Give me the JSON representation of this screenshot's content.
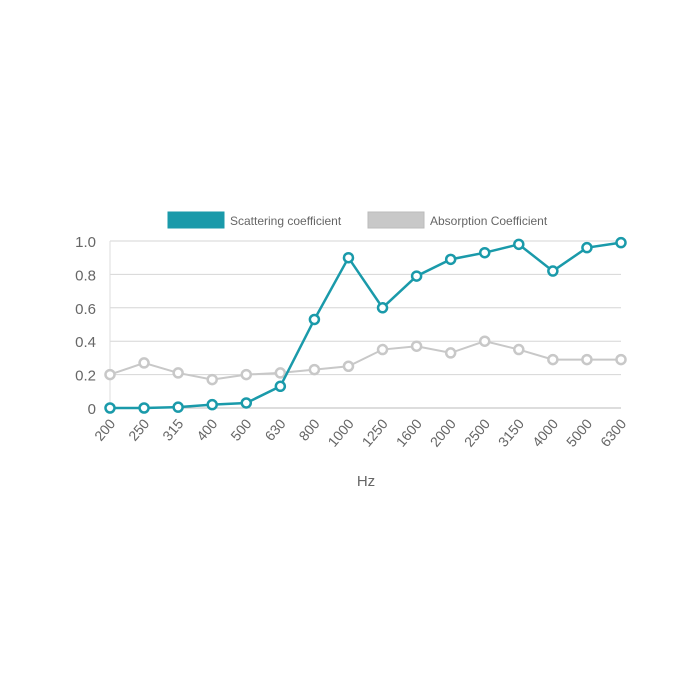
{
  "chart_data": {
    "type": "line",
    "title": "",
    "xlabel": "Hz",
    "ylabel": "",
    "ylim": [
      0,
      1.0
    ],
    "yticks": [
      "0",
      "0.2",
      "0.4",
      "0.6",
      "0.8",
      "1.0"
    ],
    "ytick_values": [
      0,
      0.2,
      0.4,
      0.6,
      0.8,
      1.0
    ],
    "grid": true,
    "legend_position": "top-center",
    "categories": [
      "200",
      "250",
      "315",
      "400",
      "500",
      "630",
      "800",
      "1000",
      "1250",
      "1600",
      "2000",
      "2500",
      "3150",
      "4000",
      "5000",
      "6300"
    ],
    "series": [
      {
        "name": "Scattering coefficient",
        "color": "#1a9aaa",
        "values": [
          0,
          0,
          0.005,
          0.02,
          0.03,
          0.13,
          0.53,
          0.9,
          0.6,
          0.79,
          0.89,
          0.93,
          0.98,
          0.82,
          0.96,
          0.99
        ]
      },
      {
        "name": "Absorption Coefficient",
        "color": "#c8c8c8",
        "values": [
          0.2,
          0.27,
          0.21,
          0.17,
          0.2,
          0.21,
          0.23,
          0.25,
          0.35,
          0.37,
          0.33,
          0.4,
          0.35,
          0.29,
          0.29,
          0.29
        ]
      }
    ]
  }
}
